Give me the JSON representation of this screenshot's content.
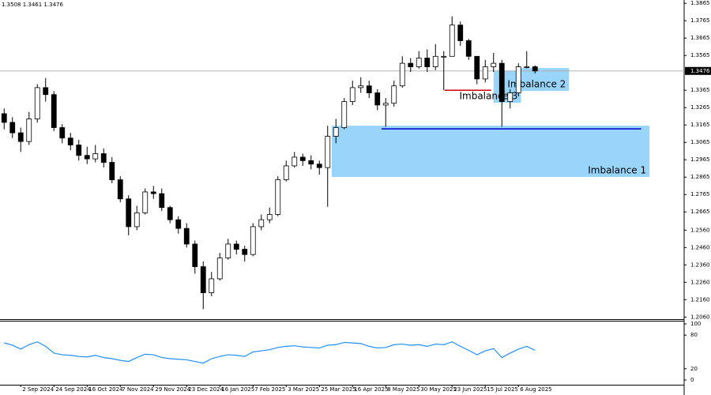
{
  "chart_data": [
    {
      "type": "candlestick",
      "header": "1.3508 1.3461 1.3476",
      "categories": [
        null,
        null,
        "2 Sep 2024",
        null,
        null,
        null,
        "24 Sep 2024",
        null,
        null,
        null,
        "16 Oct 2024",
        null,
        null,
        null,
        "7 Nov 2024",
        null,
        null,
        null,
        "29 Nov 2024",
        null,
        null,
        null,
        "23 Dec 2024",
        null,
        null,
        null,
        "16 Jan 2025",
        null,
        null,
        null,
        "7 Feb 2025",
        null,
        null,
        null,
        "3 Mar 2025",
        null,
        null,
        null,
        "25 Mar 2025",
        null,
        null,
        null,
        "16 Apr 2025",
        null,
        null,
        null,
        "8 May 2025",
        null,
        null,
        null,
        "30 May 2025",
        null,
        null,
        null,
        "23 Jun 2025",
        null,
        null,
        null,
        "15 Jul 2025",
        null,
        null,
        null,
        "6 Aug 2025",
        null,
        null
      ],
      "open": [
        1.323,
        1.318,
        1.312,
        1.307,
        1.32,
        1.338,
        1.334,
        1.315,
        1.309,
        1.305,
        1.299,
        1.297,
        1.3,
        1.295,
        1.285,
        1.274,
        1.258,
        1.266,
        1.278,
        1.277,
        1.269,
        1.262,
        1.257,
        1.248,
        1.235,
        1.22,
        1.228,
        1.24,
        1.248,
        1.245,
        1.242,
        1.258,
        1.262,
        1.265,
        1.285,
        1.293,
        1.298,
        1.296,
        1.294,
        1.292,
        1.31,
        1.315,
        1.33,
        1.338,
        1.339,
        1.335,
        1.328,
        1.329,
        1.339,
        1.352,
        1.35,
        1.355,
        1.35,
        1.356,
        1.356,
        1.374,
        1.365,
        1.356,
        1.343,
        1.35,
        1.352,
        1.33,
        1.335,
        1.35,
        1.35
      ],
      "high": [
        1.326,
        1.321,
        1.315,
        1.324,
        1.34,
        1.3435,
        1.336,
        1.317,
        1.312,
        1.308,
        1.304,
        1.305,
        1.303,
        1.298,
        1.287,
        1.276,
        1.27,
        1.28,
        1.2815,
        1.28,
        1.27,
        1.264,
        1.26,
        1.25,
        1.238,
        1.232,
        1.243,
        1.251,
        1.25,
        1.247,
        1.26,
        1.265,
        1.269,
        1.287,
        1.296,
        1.301,
        1.3,
        1.299,
        1.296,
        1.316,
        1.32,
        1.332,
        1.342,
        1.344,
        1.342,
        1.337,
        1.332,
        1.342,
        1.356,
        1.355,
        1.359,
        1.36,
        1.363,
        1.359,
        1.379,
        1.376,
        1.366,
        1.356,
        1.354,
        1.358,
        1.354,
        1.337,
        1.352,
        1.359,
        1.3508
      ],
      "low": [
        1.314,
        1.309,
        1.301,
        1.305,
        1.318,
        1.33,
        1.313,
        1.306,
        1.302,
        1.296,
        1.294,
        1.295,
        1.292,
        1.283,
        1.272,
        1.253,
        1.256,
        1.265,
        1.274,
        1.267,
        1.26,
        1.254,
        1.246,
        1.231,
        1.2105,
        1.218,
        1.227,
        1.239,
        1.242,
        1.238,
        1.241,
        1.256,
        1.26,
        1.264,
        1.284,
        1.292,
        1.293,
        1.291,
        1.288,
        1.2695,
        1.306,
        1.314,
        1.328,
        1.335,
        1.332,
        1.325,
        1.3155,
        1.327,
        1.338,
        1.347,
        1.349,
        1.347,
        1.348,
        1.3365,
        1.356,
        1.362,
        1.354,
        1.34,
        1.341,
        1.347,
        1.3155,
        1.326,
        1.333,
        1.349,
        1.3461
      ],
      "close": [
        1.318,
        1.312,
        1.307,
        1.32,
        1.338,
        1.334,
        1.315,
        1.309,
        1.305,
        1.299,
        1.297,
        1.3,
        1.295,
        1.285,
        1.274,
        1.258,
        1.266,
        1.278,
        1.277,
        1.269,
        1.262,
        1.257,
        1.248,
        1.235,
        1.22,
        1.228,
        1.24,
        1.248,
        1.245,
        1.242,
        1.258,
        1.262,
        1.265,
        1.285,
        1.293,
        1.298,
        1.296,
        1.294,
        1.292,
        1.31,
        1.315,
        1.33,
        1.338,
        1.339,
        1.335,
        1.328,
        1.329,
        1.339,
        1.352,
        1.35,
        1.355,
        1.35,
        1.356,
        1.356,
        1.374,
        1.365,
        1.356,
        1.343,
        1.35,
        1.352,
        1.33,
        1.335,
        1.35,
        1.35,
        1.3476
      ],
      "ylim": [
        1.2048,
        1.3875
      ],
      "yticks": [
        1.3865,
        1.3765,
        1.3665,
        1.3565,
        1.3365,
        1.3265,
        1.3165,
        1.3065,
        1.2965,
        1.2865,
        1.2765,
        1.2665,
        {
          "value": 1.256,
          "label": "1.2560"
        },
        {
          "value": 1.246,
          "label": "1.2460"
        },
        {
          "value": 1.236,
          "label": "1.2360"
        },
        {
          "value": 1.226,
          "label": "1.2260"
        },
        {
          "value": 1.216,
          "label": "1.2160"
        },
        {
          "value": 1.206,
          "label": "1.2060"
        }
      ],
      "last_price": 1.3476,
      "zones": [
        {
          "label": "Imbalance 1",
          "ymin": 1.2866,
          "ymax": 1.3161,
          "from": 40,
          "to": 78.3,
          "color": "#87cefa"
        },
        {
          "label": "Imbalance 2",
          "ymin": 1.3361,
          "ymax": 1.3493,
          "from": 62.4,
          "to": 68.6,
          "color": "#87cefa"
        },
        {
          "label": "Imbalance 3",
          "ymin": 1.3293,
          "ymax": 1.3475,
          "from": 59.5,
          "to": 62.8,
          "color": "#87cefa"
        }
      ],
      "levels": [
        {
          "value": 1.3143,
          "from": 46,
          "to": 77.3,
          "color": "#0000cc"
        },
        {
          "value": 1.3365,
          "from": 53.6,
          "to": 59.2,
          "color": "#d00000"
        }
      ]
    },
    {
      "type": "line",
      "values": [
        66,
        62,
        55,
        63,
        68,
        60,
        48,
        45,
        44,
        42,
        41,
        44,
        40,
        38,
        35,
        33,
        40,
        46,
        45,
        40,
        38,
        37,
        36,
        33,
        30,
        38,
        42,
        45,
        44,
        42,
        50,
        52,
        54,
        58,
        60,
        61,
        59,
        58,
        57,
        62,
        63,
        67,
        66,
        65,
        60,
        57,
        58,
        63,
        64,
        62,
        63,
        60,
        64,
        63,
        68,
        60,
        53,
        45,
        52,
        56,
        40,
        48,
        55,
        60,
        53
      ],
      "color": "#1e90ff",
      "ylim": [
        0,
        100
      ],
      "yticks": [
        100,
        80,
        20,
        0
      ]
    }
  ]
}
